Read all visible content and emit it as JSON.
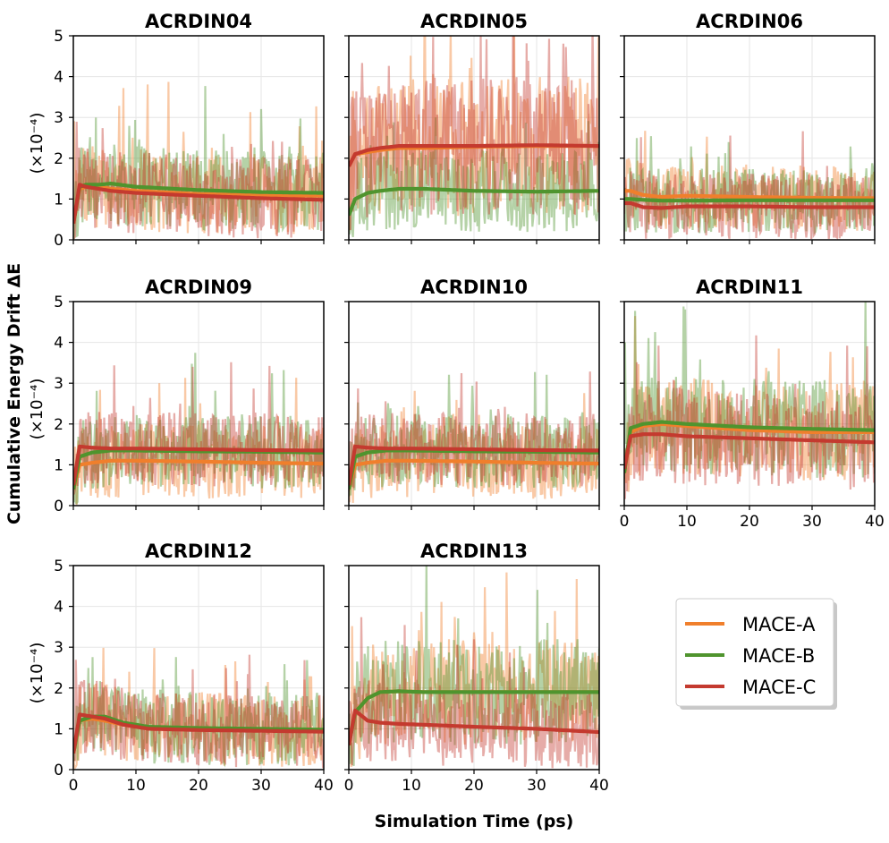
{
  "figure": {
    "ylabel": "Cumulative Energy Drift ΔE",
    "xlabel": "Simulation Time (ps)",
    "unit_label": "(×10⁻⁴)"
  },
  "legend": {
    "placement": "bottom-right",
    "entries": [
      {
        "name": "MACE-A",
        "color": "#f07f2c"
      },
      {
        "name": "MACE-B",
        "color": "#4f942e"
      },
      {
        "name": "MACE-C",
        "color": "#c43a2f"
      }
    ]
  },
  "chart_data": [
    {
      "type": "line",
      "title": "ACRDIN04",
      "xlim": [
        0,
        40
      ],
      "ylim": [
        0,
        5
      ],
      "xticks": [],
      "yticks": [
        "0",
        "1",
        "2",
        "3",
        "4",
        "5"
      ],
      "grid": true,
      "series": [
        {
          "name": "MACE-A",
          "x": [
            0,
            1,
            2,
            4,
            6,
            10,
            20,
            30,
            40
          ],
          "y": [
            0.4,
            1.25,
            1.3,
            1.3,
            1.25,
            1.2,
            1.12,
            1.1,
            1.08
          ],
          "noise": 1.0
        },
        {
          "name": "MACE-B",
          "x": [
            0,
            1,
            2,
            4,
            6,
            10,
            20,
            30,
            40
          ],
          "y": [
            0.4,
            1.3,
            1.35,
            1.35,
            1.38,
            1.3,
            1.22,
            1.17,
            1.15
          ],
          "noise": 1.0
        },
        {
          "name": "MACE-C",
          "x": [
            0,
            1,
            2,
            4,
            6,
            10,
            20,
            30,
            40
          ],
          "y": [
            0.4,
            1.35,
            1.3,
            1.25,
            1.2,
            1.15,
            1.08,
            1.02,
            0.98
          ],
          "noise": 1.0
        }
      ]
    },
    {
      "type": "line",
      "title": "ACRDIN05",
      "xlim": [
        0,
        40
      ],
      "ylim": [
        0,
        5
      ],
      "xticks": [],
      "yticks": [],
      "grid": true,
      "series": [
        {
          "name": "MACE-A",
          "x": [
            0,
            1,
            3,
            5,
            8,
            12,
            20,
            30,
            40
          ],
          "y": [
            1.8,
            2.1,
            2.15,
            2.2,
            2.25,
            2.25,
            2.28,
            2.3,
            2.3
          ],
          "noise": 1.7
        },
        {
          "name": "MACE-B",
          "x": [
            0,
            1,
            3,
            5,
            8,
            12,
            20,
            30,
            40
          ],
          "y": [
            0.6,
            1.0,
            1.15,
            1.2,
            1.25,
            1.25,
            1.2,
            1.18,
            1.2
          ],
          "noise": 1.0
        },
        {
          "name": "MACE-C",
          "x": [
            0,
            1,
            3,
            5,
            8,
            12,
            20,
            30,
            40
          ],
          "y": [
            1.8,
            2.1,
            2.2,
            2.25,
            2.3,
            2.3,
            2.3,
            2.32,
            2.3
          ],
          "noise": 1.7
        }
      ]
    },
    {
      "type": "line",
      "title": "ACRDIN06",
      "xlim": [
        0,
        40
      ],
      "ylim": [
        0,
        5
      ],
      "xticks": [],
      "yticks": [],
      "grid": true,
      "series": [
        {
          "name": "MACE-A",
          "x": [
            0,
            1,
            3,
            6,
            10,
            20,
            30,
            40
          ],
          "y": [
            1.2,
            1.2,
            1.1,
            1.05,
            1.08,
            1.05,
            1.03,
            1.02
          ],
          "noise": 0.8
        },
        {
          "name": "MACE-B",
          "x": [
            0,
            1,
            3,
            6,
            10,
            20,
            30,
            40
          ],
          "y": [
            1.0,
            1.0,
            0.98,
            0.96,
            0.96,
            0.97,
            0.97,
            0.97
          ],
          "noise": 0.8
        },
        {
          "name": "MACE-C",
          "x": [
            0,
            1,
            3,
            6,
            10,
            20,
            30,
            40
          ],
          "y": [
            0.9,
            0.9,
            0.8,
            0.78,
            0.82,
            0.82,
            0.8,
            0.8
          ],
          "noise": 0.8
        }
      ]
    },
    {
      "type": "line",
      "title": "ACRDIN09",
      "xlim": [
        0,
        40
      ],
      "ylim": [
        0,
        5
      ],
      "xticks": [],
      "yticks": [
        "0",
        "1",
        "2",
        "3",
        "4",
        "5"
      ],
      "grid": true,
      "series": [
        {
          "name": "MACE-A",
          "x": [
            0,
            1,
            3,
            6,
            10,
            20,
            30,
            40
          ],
          "y": [
            0.4,
            1.0,
            1.05,
            1.1,
            1.1,
            1.08,
            1.05,
            1.03
          ],
          "noise": 0.9
        },
        {
          "name": "MACE-B",
          "x": [
            0,
            1,
            3,
            6,
            10,
            20,
            30,
            40
          ],
          "y": [
            0.4,
            1.2,
            1.3,
            1.35,
            1.35,
            1.33,
            1.32,
            1.3
          ],
          "noise": 0.9
        },
        {
          "name": "MACE-C",
          "x": [
            0,
            1,
            3,
            6,
            10,
            20,
            30,
            40
          ],
          "y": [
            0.5,
            1.45,
            1.42,
            1.4,
            1.4,
            1.38,
            1.36,
            1.35
          ],
          "noise": 0.9
        }
      ]
    },
    {
      "type": "line",
      "title": "ACRDIN10",
      "xlim": [
        0,
        40
      ],
      "ylim": [
        0,
        5
      ],
      "xticks": [],
      "yticks": [],
      "grid": true,
      "series": [
        {
          "name": "MACE-A",
          "x": [
            0,
            1,
            3,
            6,
            10,
            20,
            30,
            40
          ],
          "y": [
            0.4,
            1.0,
            1.05,
            1.1,
            1.1,
            1.08,
            1.05,
            1.03
          ],
          "noise": 0.9
        },
        {
          "name": "MACE-B",
          "x": [
            0,
            1,
            3,
            6,
            10,
            20,
            30,
            40
          ],
          "y": [
            0.4,
            1.2,
            1.3,
            1.35,
            1.35,
            1.33,
            1.32,
            1.3
          ],
          "noise": 0.9
        },
        {
          "name": "MACE-C",
          "x": [
            0,
            1,
            3,
            6,
            10,
            20,
            30,
            40
          ],
          "y": [
            0.5,
            1.45,
            1.42,
            1.4,
            1.4,
            1.38,
            1.36,
            1.35
          ],
          "noise": 0.9
        }
      ]
    },
    {
      "type": "line",
      "title": "ACRDIN11",
      "xlim": [
        0,
        40
      ],
      "ylim": [
        0,
        5
      ],
      "xticks": [
        "0",
        "10",
        "20",
        "30",
        "40"
      ],
      "yticks": [],
      "grid": true,
      "series": [
        {
          "name": "MACE-A",
          "x": [
            0,
            1,
            3,
            6,
            10,
            20,
            30,
            40
          ],
          "y": [
            0.8,
            1.8,
            1.95,
            2.0,
            1.95,
            1.85,
            1.8,
            1.8
          ],
          "noise": 1.2
        },
        {
          "name": "MACE-B",
          "x": [
            0,
            1,
            3,
            6,
            10,
            20,
            30,
            40
          ],
          "y": [
            0.8,
            1.9,
            2.0,
            2.05,
            2.0,
            1.92,
            1.88,
            1.85
          ],
          "noise": 1.2
        },
        {
          "name": "MACE-C",
          "x": [
            0,
            1,
            3,
            6,
            10,
            20,
            30,
            40
          ],
          "y": [
            0.9,
            1.7,
            1.75,
            1.75,
            1.7,
            1.65,
            1.6,
            1.55
          ],
          "noise": 1.2
        }
      ]
    },
    {
      "type": "line",
      "title": "ACRDIN12",
      "xlim": [
        0,
        40
      ],
      "ylim": [
        0,
        5
      ],
      "xticks": [
        "0",
        "10",
        "20",
        "30",
        "40"
      ],
      "yticks": [
        "0",
        "1",
        "2",
        "3",
        "4",
        "5"
      ],
      "grid": true,
      "series": [
        {
          "name": "MACE-A",
          "x": [
            0,
            1,
            3,
            5,
            8,
            12,
            20,
            30,
            40
          ],
          "y": [
            0.4,
            1.2,
            1.25,
            1.2,
            1.1,
            1.02,
            1.0,
            0.98,
            0.95
          ],
          "noise": 0.9
        },
        {
          "name": "MACE-B",
          "x": [
            0,
            1,
            3,
            5,
            8,
            12,
            20,
            30,
            40
          ],
          "y": [
            0.4,
            1.2,
            1.3,
            1.3,
            1.15,
            1.05,
            1.02,
            1.0,
            0.98
          ],
          "noise": 0.9
        },
        {
          "name": "MACE-C",
          "x": [
            0,
            1,
            3,
            5,
            8,
            12,
            20,
            30,
            40
          ],
          "y": [
            0.4,
            1.35,
            1.3,
            1.25,
            1.1,
            1.0,
            0.97,
            0.95,
            0.93
          ],
          "noise": 0.9
        }
      ]
    },
    {
      "type": "line",
      "title": "ACRDIN13",
      "xlim": [
        0,
        40
      ],
      "ylim": [
        0,
        5
      ],
      "xticks": [
        "0",
        "10",
        "20",
        "30",
        "40"
      ],
      "yticks": [],
      "grid": true,
      "series": [
        {
          "name": "MACE-A",
          "x": [
            0,
            1,
            3,
            5,
            8,
            12,
            20,
            30,
            40
          ],
          "y": [
            0.6,
            1.4,
            1.75,
            1.9,
            1.92,
            1.9,
            1.9,
            1.9,
            1.9
          ],
          "noise": 1.3
        },
        {
          "name": "MACE-B",
          "x": [
            0,
            1,
            3,
            5,
            8,
            12,
            20,
            30,
            40
          ],
          "y": [
            0.6,
            1.4,
            1.75,
            1.9,
            1.92,
            1.9,
            1.9,
            1.9,
            1.9
          ],
          "noise": 1.3
        },
        {
          "name": "MACE-C",
          "x": [
            0,
            1,
            3,
            5,
            8,
            12,
            20,
            30,
            40
          ],
          "y": [
            0.6,
            1.45,
            1.2,
            1.15,
            1.12,
            1.1,
            1.05,
            1.0,
            0.92
          ],
          "noise": 1.0
        }
      ]
    }
  ]
}
